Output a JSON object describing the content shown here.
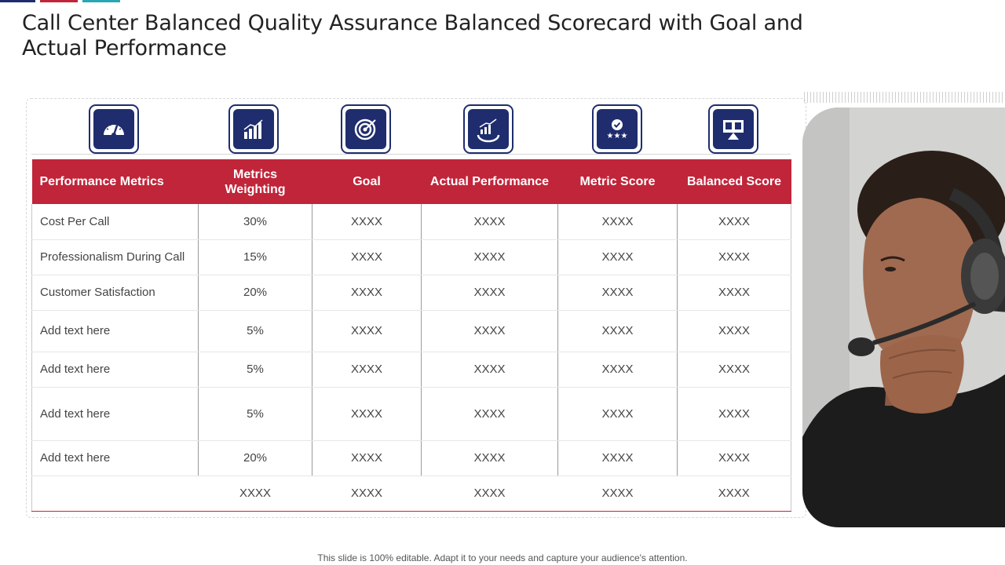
{
  "title": "Call Center Balanced Quality Assurance  Balanced Scorecard with Goal and Actual Performance",
  "colors": {
    "accent_red": "#c0253a",
    "navy": "#1f2d6e",
    "teal": "#2aa7b4"
  },
  "icons": [
    "speedometer-icon",
    "bar-growth-chart-icon",
    "target-icon",
    "rising-chart-gear-icon",
    "rating-badge-stars-icon",
    "presentation-board-icon"
  ],
  "table": {
    "headers": [
      "Performance Metrics",
      "Metrics Weighting",
      "Goal",
      "Actual Performance",
      "Metric Score",
      "Balanced Score"
    ],
    "rows": [
      [
        "Cost Per Call",
        "30%",
        "XXXX",
        "XXXX",
        "XXXX",
        "XXXX"
      ],
      [
        "Professionalism During Call",
        "15%",
        "XXXX",
        "XXXX",
        "XXXX",
        "XXXX"
      ],
      [
        "Customer Satisfaction",
        "20%",
        "XXXX",
        "XXXX",
        "XXXX",
        "XXXX"
      ],
      [
        "Add text here",
        "5%",
        "XXXX",
        "XXXX",
        "XXXX",
        "XXXX"
      ],
      [
        "Add text here",
        "5%",
        "XXXX",
        "XXXX",
        "XXXX",
        "XXXX"
      ],
      [
        "Add text here",
        "5%",
        "XXXX",
        "XXXX",
        "XXXX",
        "XXXX"
      ],
      [
        "Add text here",
        "20%",
        "XXXX",
        "XXXX",
        "XXXX",
        "XXXX"
      ]
    ],
    "total": [
      "",
      "XXXX",
      "XXXX",
      "XXXX",
      "XXXX",
      "XXXX"
    ]
  },
  "footer": "This slide is 100% editable. Adapt it to your needs and capture your audience's attention."
}
